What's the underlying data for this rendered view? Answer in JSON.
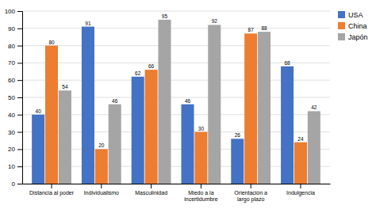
{
  "chart_data": {
    "type": "bar",
    "categories": [
      "Distancia al poder",
      "Individualismo",
      "Masculinidad",
      "Miedo a la\nincertidumbre",
      "Orientación a\nlargo plazo",
      "Indulgencia"
    ],
    "series": [
      {
        "name": "USA",
        "color": "#4472C4",
        "values": [
          40,
          91,
          62,
          46,
          26,
          68
        ]
      },
      {
        "name": "China",
        "color": "#ED7D31",
        "values": [
          80,
          20,
          66,
          30,
          87,
          24
        ]
      },
      {
        "name": "Japón",
        "color": "#A5A5A5",
        "values": [
          54,
          46,
          95,
          92,
          88,
          42
        ]
      }
    ],
    "ylim": [
      0,
      100
    ],
    "yticks": [
      0,
      10,
      20,
      30,
      40,
      50,
      60,
      70,
      80,
      90,
      100
    ],
    "grid": true,
    "legend": "right",
    "data_labels": true
  }
}
